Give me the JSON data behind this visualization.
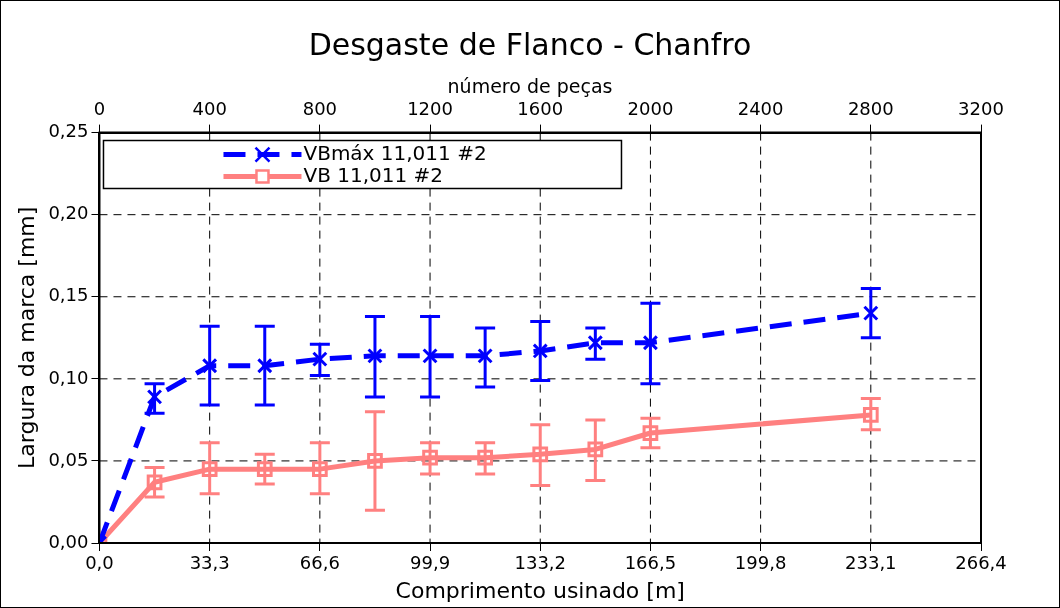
{
  "chart_data": {
    "type": "line",
    "title": "Desgaste de Flanco - Chanfro",
    "x2label": "número de peças",
    "xlabel": "Comprimento usinado [m]",
    "ylabel": "Largura da marca [mm]",
    "x": [
      0,
      16.65,
      33.3,
      49.95,
      66.6,
      83.25,
      99.9,
      116.55,
      133.2,
      149.85,
      166.5,
      233.1
    ],
    "series": [
      {
        "name": "VBmáx 11,011 #2",
        "color": "#0000ff",
        "marker": "cross",
        "line_style": "dashed",
        "values": [
          0,
          0.089,
          0.108,
          0.108,
          0.112,
          0.114,
          0.114,
          0.114,
          0.117,
          0.122,
          0.122,
          0.14
        ],
        "errors": [
          null,
          [
            0.079,
            0.097
          ],
          [
            0.084,
            0.132
          ],
          [
            0.084,
            0.132
          ],
          [
            0.102,
            0.121
          ],
          [
            0.089,
            0.138
          ],
          [
            0.089,
            0.138
          ],
          [
            0.095,
            0.131
          ],
          [
            0.099,
            0.135
          ],
          [
            0.112,
            0.131
          ],
          [
            0.097,
            0.146
          ],
          [
            0.125,
            0.155
          ]
        ]
      },
      {
        "name": "VB 11,011 #2",
        "color": "#ff8080",
        "marker": "square",
        "line_style": "solid",
        "values": [
          0,
          0.037,
          0.045,
          0.045,
          0.045,
          0.05,
          0.052,
          0.052,
          0.054,
          0.057,
          0.067,
          0.078
        ],
        "errors": [
          null,
          [
            0.028,
            0.046
          ],
          [
            0.03,
            0.061
          ],
          [
            0.036,
            0.054
          ],
          [
            0.03,
            0.061
          ],
          [
            0.02,
            0.08
          ],
          [
            0.042,
            0.061
          ],
          [
            0.042,
            0.061
          ],
          [
            0.035,
            0.072
          ],
          [
            0.038,
            0.075
          ],
          [
            0.058,
            0.076
          ],
          [
            0.069,
            0.088
          ]
        ]
      }
    ],
    "xlim": [
      0,
      266.4
    ],
    "xticks": [
      {
        "value": 0,
        "label": "0,0"
      },
      {
        "value": 33.3,
        "label": "33,3"
      },
      {
        "value": 66.6,
        "label": "66,6"
      },
      {
        "value": 99.9,
        "label": "99,9"
      },
      {
        "value": 133.2,
        "label": "133,2"
      },
      {
        "value": 166.5,
        "label": "166,5"
      },
      {
        "value": 199.8,
        "label": "199,8"
      },
      {
        "value": 233.1,
        "label": "233,1"
      },
      {
        "value": 266.4,
        "label": "266,4"
      }
    ],
    "x2lim": [
      0,
      3200
    ],
    "x2ticks": [
      0,
      400,
      800,
      1200,
      1600,
      2000,
      2400,
      2800,
      3200
    ],
    "ylim": [
      0,
      0.25
    ],
    "yticks": [
      {
        "value": 0,
        "label": "0,00"
      },
      {
        "value": 0.05,
        "label": "0,05"
      },
      {
        "value": 0.1,
        "label": "0,10"
      },
      {
        "value": 0.15,
        "label": "0,15"
      },
      {
        "value": 0.2,
        "label": "0,20"
      },
      {
        "value": 0.25,
        "label": "0,25"
      }
    ],
    "grid": true,
    "legend": "top left"
  }
}
